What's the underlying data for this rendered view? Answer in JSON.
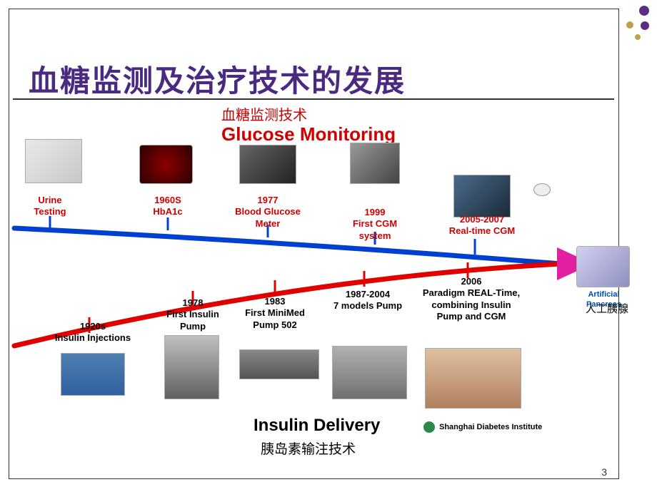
{
  "slide": {
    "title": "血糖监测及治疗技术的发展",
    "subtitle_cn": "血糖监测技术",
    "glucose_monitoring_title": "Glucose Monitoring",
    "insulin_delivery_title": "Insulin Delivery",
    "insulin_delivery_cn": "胰岛素输注技术",
    "page_number": "3",
    "institute": "Shanghai Diabetes Institute"
  },
  "monitoring": {
    "urine": {
      "label": "Urine Testing"
    },
    "hba1c": {
      "label": "1960S HbA1c"
    },
    "meter": {
      "label": "1977\nBlood Glucose Meter"
    },
    "cgm1": {
      "label": "1999\nFirst CGM system"
    },
    "cgm2": {
      "label": "2005-2007\nReal-time CGM"
    },
    "ap": {
      "label": "Artificial Pancreas",
      "label_cn": "人工胰腺"
    }
  },
  "delivery": {
    "inj": {
      "label": "1920s\nInsulin Injections"
    },
    "pump78": {
      "label": "1978\nFirst Insulin Pump"
    },
    "mm502": {
      "label": "1983\nFirst MiniMed Pump 502"
    },
    "models": {
      "label": "1987-2004\n7 models Pump"
    },
    "paradigm": {
      "label": "2006\nParadigm REAL-Time, combining Insulin Pump and CGM"
    }
  },
  "style": {
    "title_color": "#4a2a80",
    "monitoring_line_color": "#0040d0",
    "delivery_line_color": "#e00000",
    "arrow_color": "#e020a0",
    "label_red": "#d00000",
    "line_width": 7
  }
}
